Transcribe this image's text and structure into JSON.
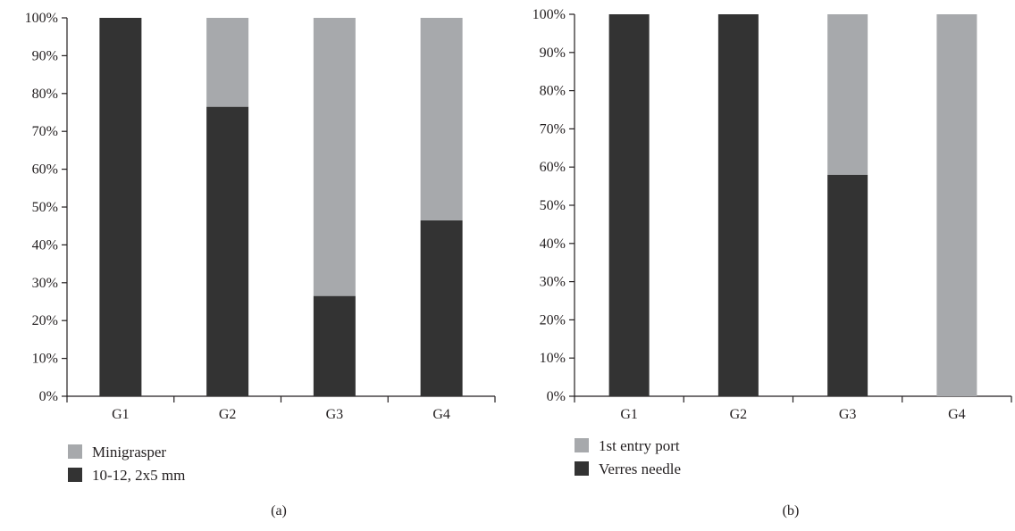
{
  "chart_data": [
    {
      "type": "bar",
      "stacked": true,
      "panel_label": "(a)",
      "categories": [
        "G1",
        "G2",
        "G3",
        "G4"
      ],
      "series": [
        {
          "name": "10-12, 2x5 mm",
          "color": "#333333",
          "values": [
            100,
            76.5,
            26.5,
            46.5
          ]
        },
        {
          "name": "Minigrasper",
          "color": "#a7a9ac",
          "values": [
            0,
            23.5,
            73.5,
            53.5
          ]
        }
      ],
      "legend": [
        {
          "name": "Minigrasper",
          "color": "#a7a9ac"
        },
        {
          "name": "10-12, 2x5 mm",
          "color": "#333333"
        }
      ],
      "legend_position": "bottom-left",
      "yticks": [
        "0%",
        "10%",
        "20%",
        "30%",
        "40%",
        "50%",
        "60%",
        "70%",
        "80%",
        "90%",
        "100%"
      ],
      "ylim": [
        0,
        100
      ],
      "title": "",
      "xlabel": "",
      "ylabel": "",
      "grid": false
    },
    {
      "type": "bar",
      "stacked": true,
      "panel_label": "(b)",
      "categories": [
        "G1",
        "G2",
        "G3",
        "G4"
      ],
      "series": [
        {
          "name": "Verres needle",
          "color": "#333333",
          "values": [
            100,
            100,
            58,
            0
          ]
        },
        {
          "name": "1st entry port",
          "color": "#a7a9ac",
          "values": [
            0,
            0,
            42,
            100
          ]
        }
      ],
      "legend": [
        {
          "name": "1st entry port",
          "color": "#a7a9ac"
        },
        {
          "name": "Verres needle",
          "color": "#333333"
        }
      ],
      "legend_position": "bottom-left",
      "yticks": [
        "0%",
        "10%",
        "20%",
        "30%",
        "40%",
        "50%",
        "60%",
        "70%",
        "80%",
        "90%",
        "100%"
      ],
      "ylim": [
        0,
        100
      ],
      "title": "",
      "xlabel": "",
      "ylabel": "",
      "grid": false
    }
  ]
}
